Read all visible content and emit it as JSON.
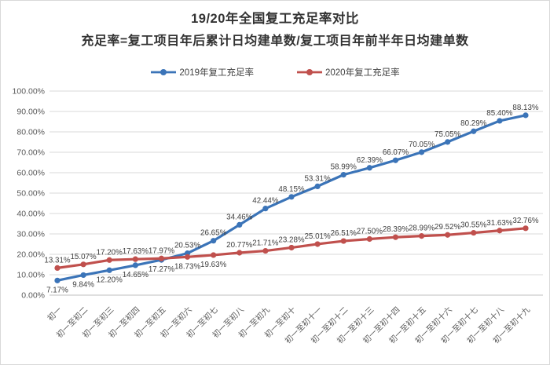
{
  "title": "19/20年全国复工充足率对比",
  "subtitle": "充足率=复工项目年后累计日均建单数/复工项目年前半年日均建单数",
  "legend": [
    {
      "label": "2019年复工充足率",
      "color": "#3B74B8"
    },
    {
      "label": "2020年复工充足率",
      "color": "#C0504D"
    }
  ],
  "colors": {
    "background": "#FFFFFF",
    "border": "#D9D9D9",
    "grid": "#D9D9D9",
    "axis": "#BFBFBF",
    "axis_text": "#595959",
    "data_label_text": "#404040",
    "title_text": "#333333",
    "series_2019": "#3B74B8",
    "series_2020": "#C0504D"
  },
  "chart_data": {
    "type": "line",
    "title": "19/20年全国复工充足率对比",
    "subtitle": "充足率=复工项目年后累计日均建单数/复工项目年前半年日均建单数",
    "xlabel": "",
    "ylabel": "",
    "ylim": [
      0,
      100
    ],
    "grid": true,
    "legend_position": "top",
    "data_labels": true,
    "label_format": "0.00%",
    "yticks": [
      "100.00%",
      "90.00%",
      "80.00%",
      "70.00%",
      "60.00%",
      "50.00%",
      "40.00%",
      "30.00%",
      "20.00%",
      "10.00%",
      "0.00%"
    ],
    "categories": [
      "初一",
      "初一至初二",
      "初一至初三",
      "初一至初四",
      "初一至初五",
      "初一至初六",
      "初一至初七",
      "初一至初八",
      "初一至初九",
      "初一至初十",
      "初一至初十一",
      "初一至初十二",
      "初一至初十三",
      "初一至初十四",
      "初一至初十五",
      "初一至初十六",
      "初一至初十七",
      "初一至初十八",
      "初一至初十九"
    ],
    "series": [
      {
        "name": "2019年复工充足率",
        "color": "#3B74B8",
        "values": [
          7.17,
          9.84,
          12.2,
          14.65,
          17.27,
          20.53,
          26.65,
          34.46,
          42.44,
          48.15,
          53.31,
          58.99,
          62.39,
          66.07,
          70.05,
          75.05,
          80.29,
          85.4,
          88.13
        ],
        "label_position": [
          "below",
          "below",
          "below",
          "below",
          "below",
          "above",
          "above",
          "above",
          "above",
          "above",
          "above",
          "above",
          "above",
          "above",
          "above",
          "above",
          "above",
          "above",
          "above"
        ]
      },
      {
        "name": "2020年复工充足率",
        "color": "#C0504D",
        "values": [
          13.31,
          15.07,
          17.2,
          17.63,
          17.97,
          18.73,
          19.63,
          20.77,
          21.71,
          23.28,
          25.01,
          26.51,
          27.5,
          28.39,
          28.99,
          29.52,
          30.55,
          31.63,
          32.76
        ],
        "label_position": [
          "above",
          "above",
          "above",
          "above",
          "above",
          "below",
          "below",
          "above",
          "above",
          "above",
          "above",
          "above",
          "above",
          "above",
          "above",
          "above",
          "above",
          "above",
          "above"
        ]
      }
    ]
  }
}
